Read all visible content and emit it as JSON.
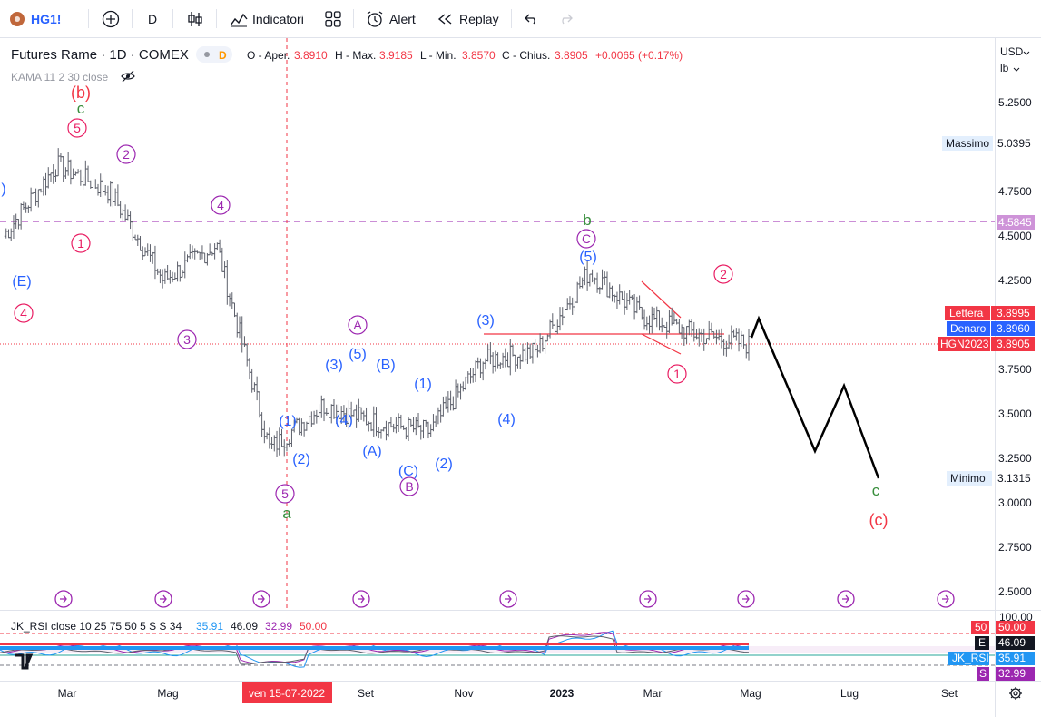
{
  "toolbar": {
    "symbol": "HG1!",
    "interval": "D",
    "indicators_label": "Indicatori",
    "alert_label": "Alert",
    "replay_label": "Replay"
  },
  "legend": {
    "instrument": "Futures Rame · 1D · COMEX",
    "badge": "D",
    "o_label": "O - Aper.",
    "o_value": "3.8910",
    "h_label": "H - Max.",
    "h_value": "3.9185",
    "l_label": "L - Min.",
    "l_value": "3.8570",
    "c_label": "C - Chius.",
    "c_value": "3.8905",
    "change": "+0.0065 (+0.17%)",
    "kama": "KAMA 11 2 30 close"
  },
  "price_axis": {
    "currency": "USD",
    "unit": "lb",
    "ticks": [
      "5.2500",
      "4.7500",
      "4.5000",
      "4.2500",
      "3.7500",
      "3.5000",
      "3.2500",
      "3.0000",
      "2.7500",
      "2.5000"
    ],
    "massimo_label": "Massimo",
    "massimo_value": "5.0395",
    "minimo_label": "Minimo",
    "minimo_value": "3.1315",
    "level_value": "4.5845",
    "lettera_label": "Lettera",
    "lettera_value": "3.8995",
    "denaro_label": "Denaro",
    "denaro_value": "3.8960",
    "last_label": "HGN2023",
    "last_value": "3.8905"
  },
  "time_axis": {
    "ticks": [
      "Mar",
      "Mag",
      "Set",
      "Nov",
      "2023",
      "Mar",
      "Mag",
      "Lug",
      "Set"
    ],
    "crosshair_label": "ven 15-07-2022"
  },
  "rsi": {
    "title": "JK_RSI close 10 25 75 50 5 S S 34",
    "v1": "35.91",
    "v2": "46.09",
    "v3": "32.99",
    "v4": "50.00",
    "axis_top": "100.00",
    "tag_50_a": "50",
    "tag_50_b": "50.00",
    "tag_e_a": "E",
    "tag_e_b": "46.09",
    "tag_rsi_a": "JK_RSI",
    "tag_rsi_b": "35.91",
    "tag_s_a": "S",
    "tag_s_b": "32.99"
  },
  "wave_labels": {
    "b_red": "(b)",
    "c_green": "c",
    "a_green": "a",
    "b_green": "b",
    "c_green_right": "c",
    "c_red_right": "(c)",
    "n1": "1",
    "n2": "2",
    "n3": "3",
    "n4": "4",
    "n5": "5",
    "nE": "(E)",
    "p1": "(1)",
    "p2": "(2)",
    "p3": "(3)",
    "p4": "(4)",
    "p5": "(5)",
    "pA": "(A)",
    "pB": "(B)",
    "pC": "(C)",
    "cA": "A",
    "cB": "B",
    "cC": "C",
    "paren": ")"
  },
  "colors": {
    "up": "#26a69a",
    "down": "#ef5350",
    "candle": "#5d606b",
    "pink": "#e91e63",
    "purple": "#9c27b0",
    "blue": "#2962ff",
    "green": "#388e3c",
    "magenta_level": "#ba68c8",
    "red_label": "#f23645"
  },
  "chart_data": {
    "type": "line",
    "title": "Futures Rame · 1D · COMEX",
    "x": [
      "2022-02",
      "2022-03",
      "2022-04",
      "2022-05",
      "2022-06",
      "2022-07",
      "2022-08",
      "2022-09",
      "2022-10",
      "2022-11",
      "2022-12",
      "2023-01",
      "2023-02",
      "2023-03",
      "2023-04"
    ],
    "series": [
      {
        "values": [
          4.5,
          4.9,
          4.75,
          4.25,
          4.45,
          3.3,
          3.55,
          3.45,
          3.4,
          3.8,
          3.85,
          4.3,
          4.05,
          3.95,
          3.89
        ]
      }
    ],
    "projection": {
      "x": [
        "2023-04",
        "2023-05",
        "2023-06",
        "2023-07",
        "2023-08"
      ],
      "values": [
        4.0,
        3.27,
        3.67,
        3.1,
        3.1
      ]
    },
    "ylim": [
      2.4,
      5.4
    ],
    "levels": [
      4.5845,
      3.8905
    ]
  }
}
